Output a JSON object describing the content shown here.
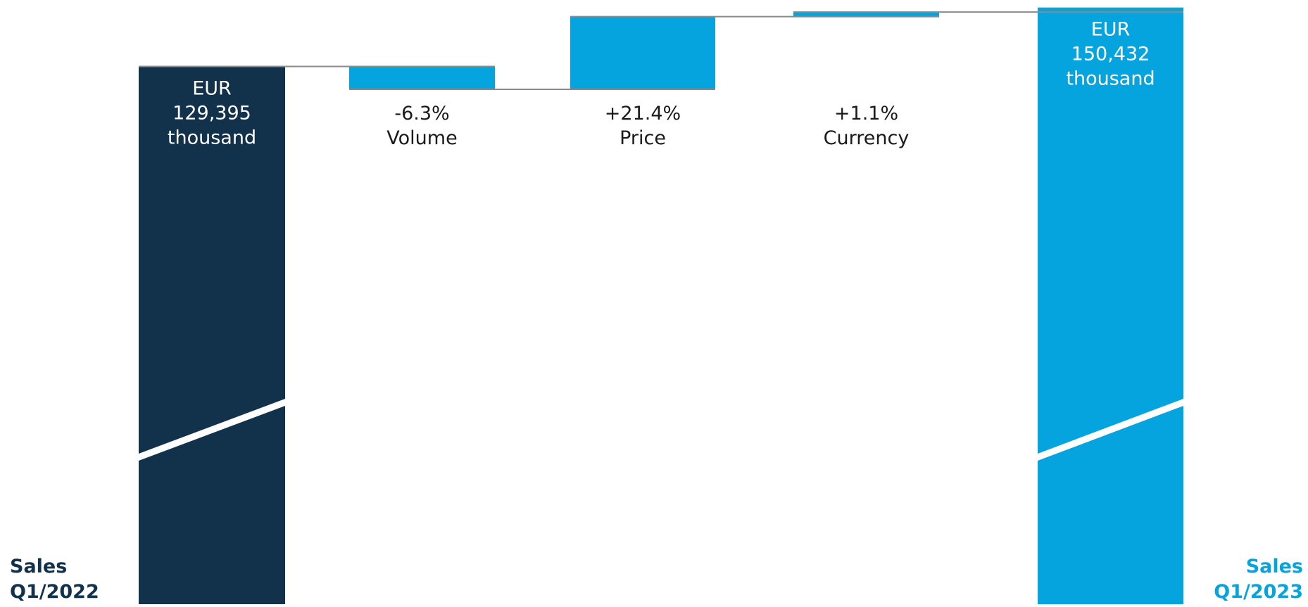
{
  "chart_data": {
    "type": "bar",
    "subtype": "waterfall",
    "title": "",
    "xlabel": "",
    "ylabel": "",
    "axis_break": true,
    "grid": false,
    "legend": "none",
    "steps": [
      {
        "kind": "total",
        "category": "Sales Q1/2022",
        "category_lines": [
          "Sales",
          "Q1/2022"
        ],
        "value": 129395,
        "value_label": [
          "EUR",
          "129,395",
          "thousand"
        ],
        "color": "#12314b"
      },
      {
        "kind": "delta",
        "category": "Volume",
        "change_pct": -6.3,
        "change_label": "-6.3%",
        "color": "#06a4de"
      },
      {
        "kind": "delta",
        "category": "Price",
        "change_pct": 21.4,
        "change_label": "+21.4%",
        "color": "#06a4de"
      },
      {
        "kind": "delta",
        "category": "Currency",
        "change_pct": 1.1,
        "change_label": "+1.1%",
        "color": "#06a4de"
      },
      {
        "kind": "total",
        "category": "Sales Q1/2023",
        "category_lines": [
          "Sales",
          "Q1/2023"
        ],
        "value": 150432,
        "value_label": [
          "EUR",
          "150,432",
          "thousand"
        ],
        "color": "#06a4de"
      }
    ],
    "colors": {
      "start_total": "#12314b",
      "end_total": "#06a4de",
      "delta": "#06a4de",
      "connector": "#8a8a8a",
      "label_on_bar": "#ffffff",
      "label_text": "#1a1a1a"
    }
  }
}
